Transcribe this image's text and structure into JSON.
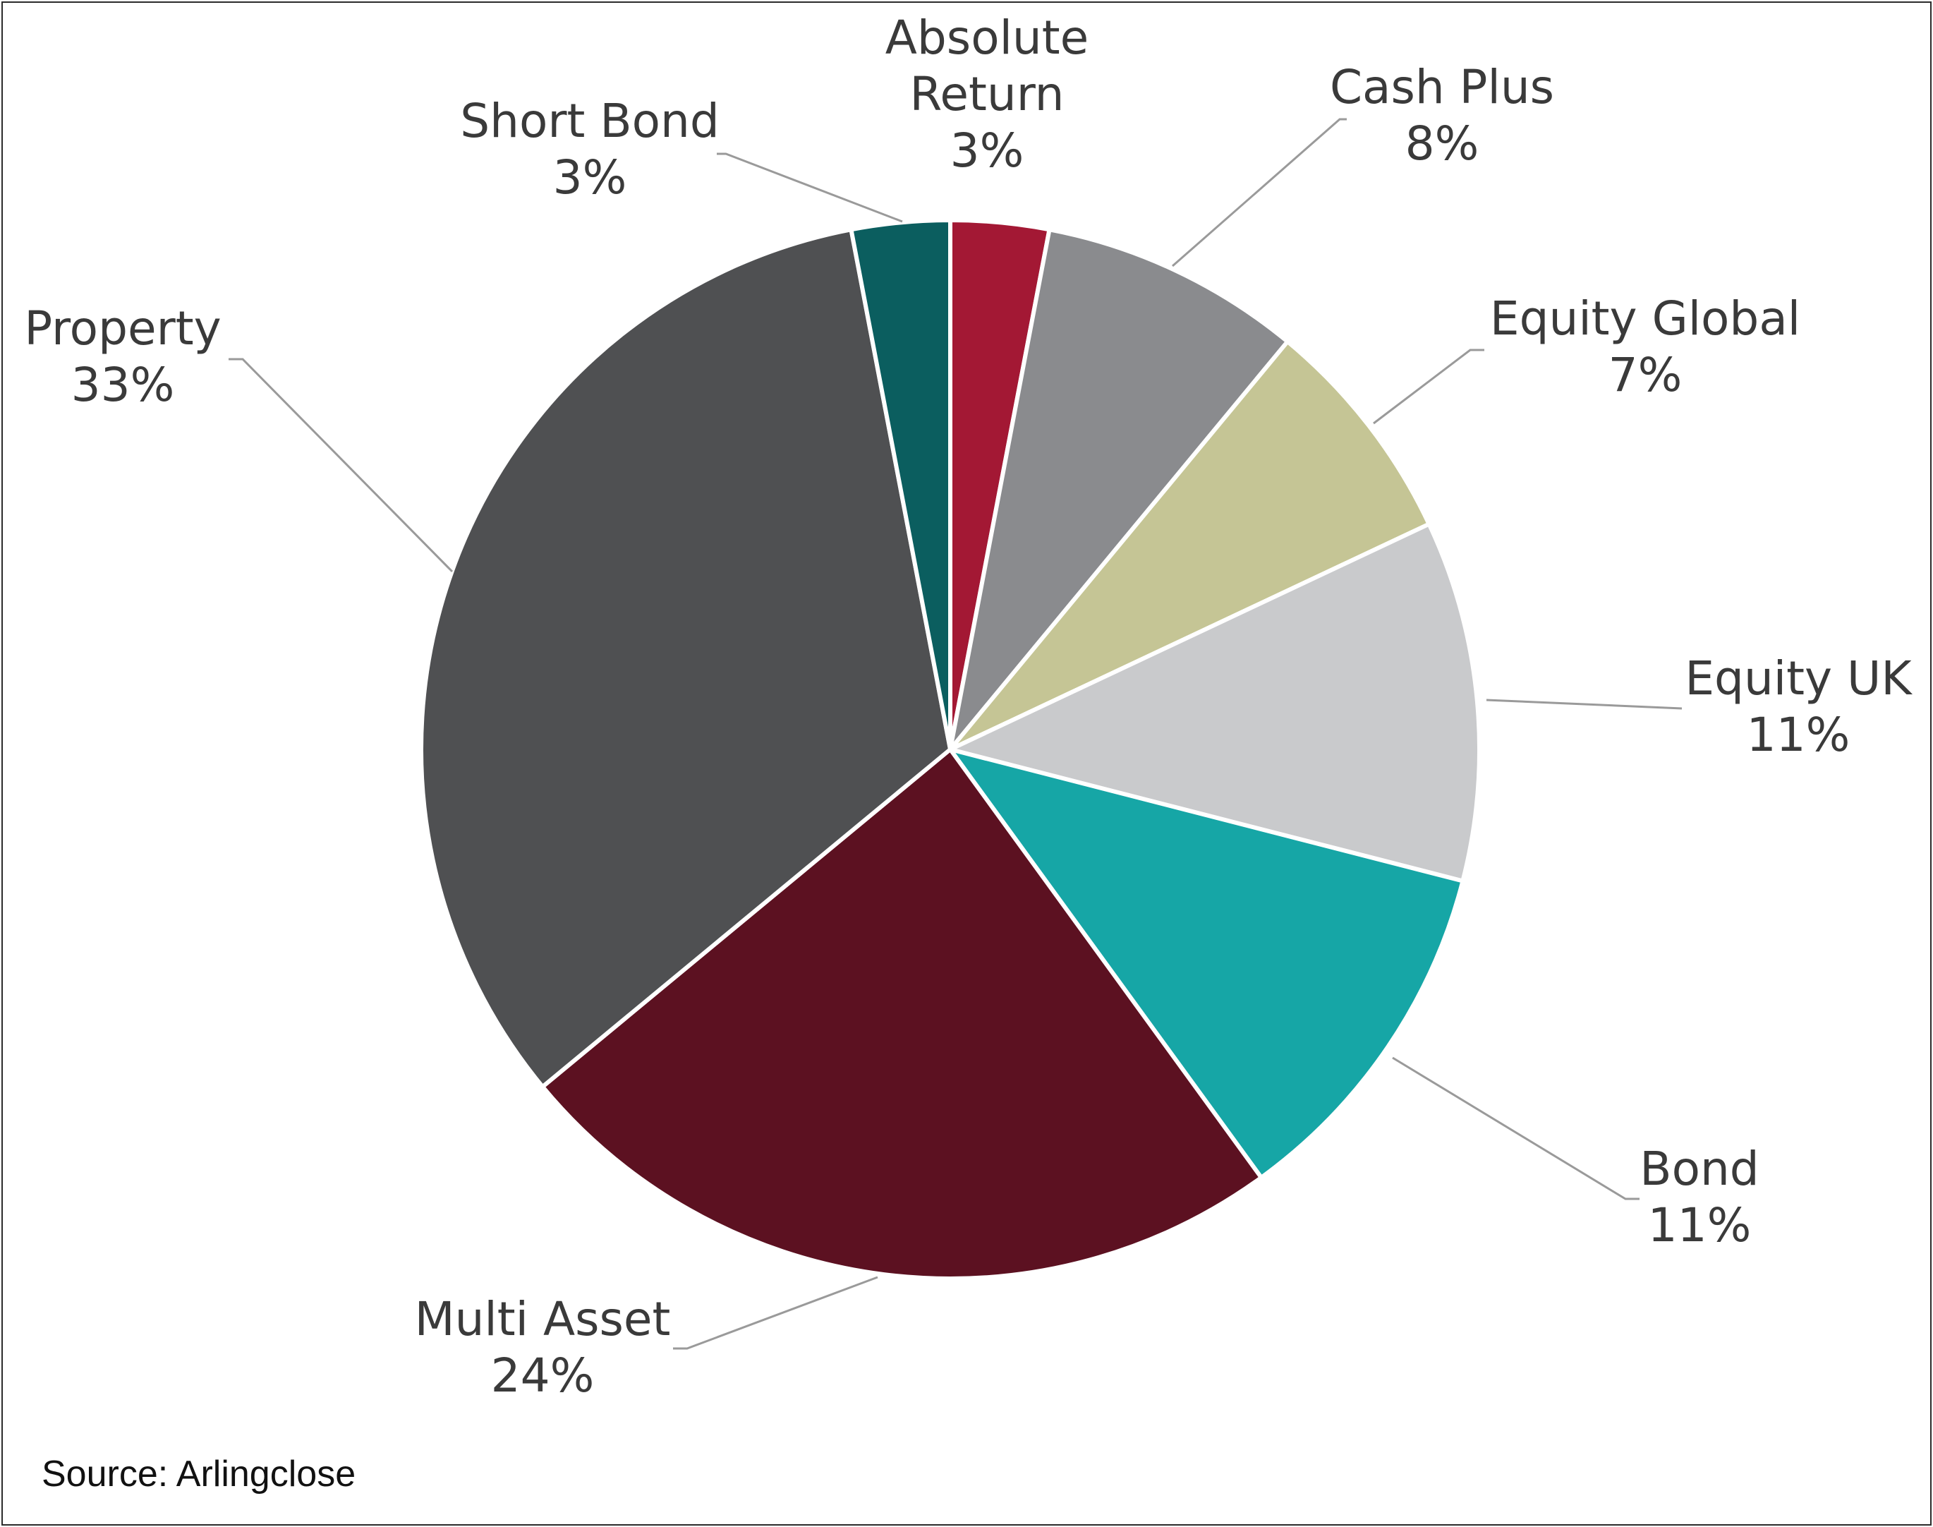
{
  "chart_data": {
    "type": "pie",
    "title": "",
    "start_angle_deg": 0,
    "direction": "clockwise",
    "slices": [
      {
        "label": "Absolute Return",
        "value": 3,
        "value_label": "3%",
        "color": "#a31834"
      },
      {
        "label": "Cash Plus",
        "value": 8,
        "value_label": "8%",
        "color": "#8a8b8e"
      },
      {
        "label": "Equity Global",
        "value": 7,
        "value_label": "7%",
        "color": "#c5c595"
      },
      {
        "label": "Equity UK",
        "value": 11,
        "value_label": "11%",
        "color": "#c9cacc"
      },
      {
        "label": "Bond",
        "value": 11,
        "value_label": "11%",
        "color": "#16a6a6"
      },
      {
        "label": "Multi Asset",
        "value": 24,
        "value_label": "24%",
        "color": "#5c1121"
      },
      {
        "label": "Property",
        "value": 33,
        "value_label": "33%",
        "color": "#4f5052"
      },
      {
        "label": "Short Bond",
        "value": 3,
        "value_label": "3%",
        "color": "#0b5e5f"
      }
    ]
  },
  "source": "Source: Arlingclose"
}
